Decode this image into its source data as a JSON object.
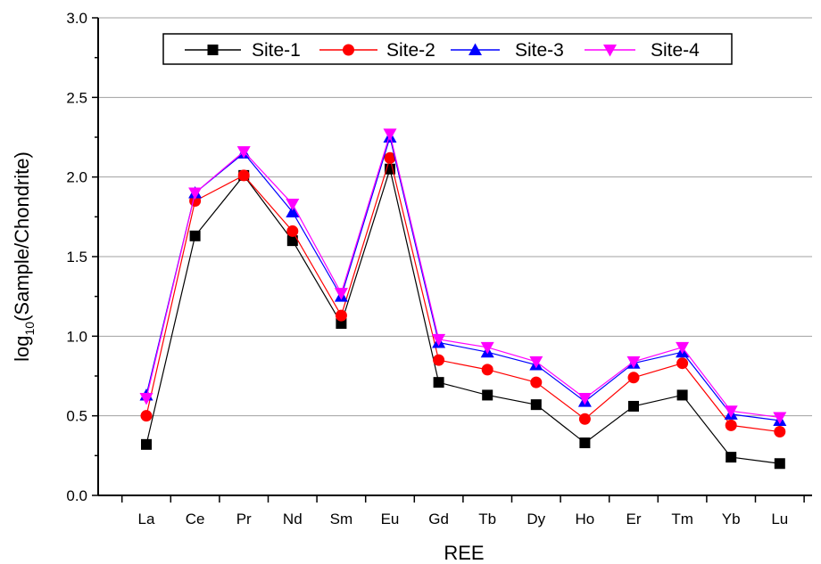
{
  "chart_data": {
    "type": "line",
    "xlabel": "REE",
    "ylabel_main": "log",
    "ylabel_sub": "10",
    "ylabel_rest": "(Sample/Chondrite)",
    "ylim": [
      0.0,
      3.0
    ],
    "yticks": [
      "0.0",
      "0.5",
      "1.0",
      "1.5",
      "2.0",
      "2.5",
      "3.0"
    ],
    "grid": "horizontal",
    "legend_position": "top",
    "categories": [
      "La",
      "Ce",
      "Pr",
      "Nd",
      "Sm",
      "Eu",
      "Gd",
      "Tb",
      "Dy",
      "Ho",
      "Er",
      "Tm",
      "Yb",
      "Lu"
    ],
    "series": [
      {
        "name": "Site-1",
        "color": "#000000",
        "marker": "square",
        "values": [
          0.32,
          1.63,
          2.01,
          1.6,
          1.08,
          2.05,
          0.71,
          0.63,
          0.57,
          0.33,
          0.56,
          0.63,
          0.24,
          0.2
        ]
      },
      {
        "name": "Site-2",
        "color": "#ff0000",
        "marker": "circle",
        "values": [
          0.5,
          1.85,
          2.01,
          1.66,
          1.13,
          2.12,
          0.85,
          0.79,
          0.71,
          0.48,
          0.74,
          0.83,
          0.44,
          0.4
        ]
      },
      {
        "name": "Site-3",
        "color": "#0000ff",
        "marker": "triangle-up",
        "values": [
          0.63,
          1.9,
          2.15,
          1.78,
          1.25,
          2.25,
          0.96,
          0.9,
          0.82,
          0.59,
          0.83,
          0.9,
          0.51,
          0.47
        ]
      },
      {
        "name": "Site-4",
        "color": "#ff00ff",
        "marker": "triangle-down",
        "values": [
          0.61,
          1.9,
          2.16,
          1.83,
          1.27,
          2.27,
          0.98,
          0.93,
          0.84,
          0.61,
          0.84,
          0.93,
          0.53,
          0.49
        ]
      }
    ]
  }
}
